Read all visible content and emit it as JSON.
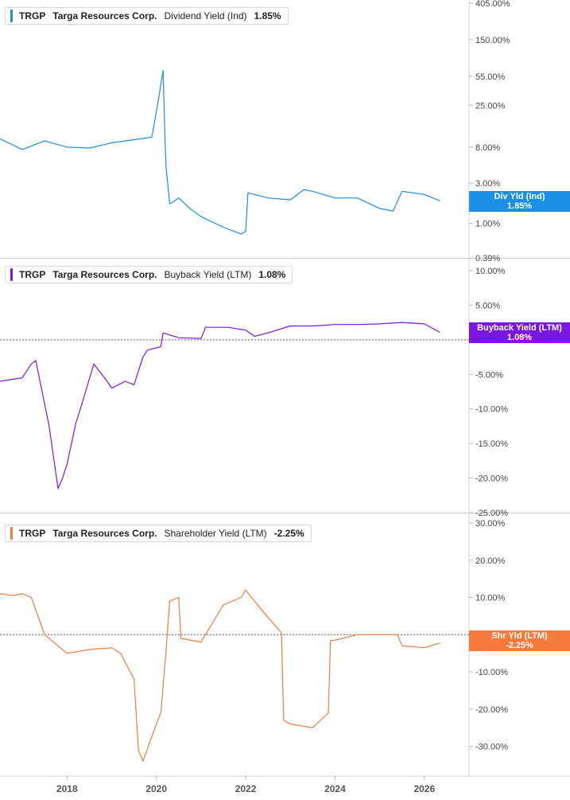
{
  "panels": [
    {
      "ticker": "TRGP",
      "company": "Targa Resources Corp.",
      "metric": "Dividend Yield (Ind)",
      "current_value": "1.85%",
      "tag_label": "Div Yld (Ind)",
      "color": "#1a8fe3"
    },
    {
      "ticker": "TRGP",
      "company": "Targa Resources Corp.",
      "metric": "Buyback Yield (LTM)",
      "current_value": "1.08%",
      "tag_label": "Buyback Yield (LTM)",
      "color": "#7b16e0"
    },
    {
      "ticker": "TRGP",
      "company": "Targa Resources Corp.",
      "metric": "Shareholder Yield (LTM)",
      "current_value": "-2.25%",
      "tag_label": "Shr Yld (LTM)",
      "color": "#f57a3c"
    }
  ],
  "chart_data": [
    {
      "type": "line",
      "scale": "log",
      "series": [
        {
          "name": "Dividend Yield (Ind)",
          "x": [
            "2016.5",
            "2017.0",
            "2017.5",
            "2018.0",
            "2018.5",
            "2019.0",
            "2019.5",
            "2019.9",
            "2020.05",
            "2020.15",
            "2020.2",
            "2020.22",
            "2020.3",
            "2020.5",
            "2020.75",
            "2021.0",
            "2021.5",
            "2021.9",
            "2022.0",
            "2022.05",
            "2022.5",
            "2023.0",
            "2023.3",
            "2023.5",
            "2024.0",
            "2024.5",
            "2025.0",
            "2025.3",
            "2025.5",
            "2026.0",
            "2026.35"
          ],
          "values": [
            10.0,
            7.5,
            9.5,
            8.0,
            7.8,
            9.0,
            9.8,
            10.5,
            30.0,
            65.0,
            8.0,
            4.5,
            1.7,
            2.0,
            1.5,
            1.2,
            0.9,
            0.75,
            0.8,
            2.3,
            2.0,
            1.9,
            2.5,
            2.4,
            2.0,
            2.0,
            1.5,
            1.4,
            2.4,
            2.2,
            1.85
          ],
          "color": "#1a8fe3"
        }
      ],
      "y_ticks": [
        "405.00%",
        "150.00%",
        "55.00%",
        "25.00%",
        "8.00%",
        "3.00%",
        "1.00%",
        "0.39%"
      ],
      "y_tick_values": [
        405,
        150,
        55,
        25,
        8,
        3,
        1,
        0.39
      ],
      "ylim": [
        0.39,
        405
      ]
    },
    {
      "type": "line",
      "scale": "linear",
      "series": [
        {
          "name": "Buyback Yield (LTM)",
          "x": [
            "2016.5",
            "2017.0",
            "2017.2",
            "2017.3",
            "2017.6",
            "2017.8",
            "2017.9",
            "2018.0",
            "2018.2",
            "2018.3",
            "2018.6",
            "2018.9",
            "2019.0",
            "2019.3",
            "2019.5",
            "2019.7",
            "2019.8",
            "2020.1",
            "2020.15",
            "2020.5",
            "2021.0",
            "2021.1",
            "2021.6",
            "2022.0",
            "2022.2",
            "2022.5",
            "2023.0",
            "2023.5",
            "2024.0",
            "2024.5",
            "2025.0",
            "2025.5",
            "2026.0",
            "2026.35"
          ],
          "values": [
            -6.0,
            -5.5,
            -3.5,
            -3.0,
            -12.5,
            -21.5,
            -20.0,
            -18.0,
            -12.0,
            -10.0,
            -3.5,
            -6.0,
            -7.0,
            -6.0,
            -6.5,
            -2.5,
            -1.5,
            -1.0,
            1.0,
            0.3,
            0.2,
            1.8,
            1.8,
            1.4,
            0.5,
            1.0,
            2.0,
            2.0,
            2.2,
            2.2,
            2.3,
            2.5,
            2.3,
            1.08
          ],
          "color": "#7b16e0"
        }
      ],
      "y_ticks": [
        "10.00%",
        "5.00%",
        "-5.00%",
        "-10.00%",
        "-15.00%",
        "-20.00%",
        "-25.00%"
      ],
      "y_tick_values": [
        10,
        5,
        -5,
        -10,
        -15,
        -20,
        -25
      ],
      "ylim": [
        -25,
        10
      ]
    },
    {
      "type": "line",
      "scale": "linear",
      "series": [
        {
          "name": "Shareholder Yield (LTM)",
          "x": [
            "2016.5",
            "2016.8",
            "2017.0",
            "2017.2",
            "2017.5",
            "2017.8",
            "2018.0",
            "2018.5",
            "2019.0",
            "2019.2",
            "2019.5",
            "2019.6",
            "2019.7",
            "2020.0",
            "2020.1",
            "2020.2",
            "2020.3",
            "2020.5",
            "2020.55",
            "2021.0",
            "2021.5",
            "2021.9",
            "2022.0",
            "2022.4",
            "2022.8",
            "2022.85",
            "2023.0",
            "2023.5",
            "2023.85",
            "2023.9",
            "2024.0",
            "2024.5",
            "2025.0",
            "2025.4",
            "2025.5",
            "2026.0",
            "2026.35"
          ],
          "values": [
            11.0,
            10.5,
            11.0,
            10.0,
            0.0,
            -3.0,
            -5.0,
            -4.0,
            -3.5,
            -5.0,
            -12.0,
            -31.0,
            -34.0,
            -24.0,
            -21.0,
            -7.0,
            9.0,
            10.0,
            -1.0,
            -2.0,
            8.0,
            10.0,
            12.0,
            6.0,
            0.5,
            -23.0,
            -24.0,
            -25.0,
            -21.0,
            -1.5,
            -1.5,
            0.0,
            0.0,
            0.0,
            -3.0,
            -3.5,
            -2.25
          ],
          "color": "#f57a3c"
        }
      ],
      "y_ticks": [
        "30.00%",
        "20.00%",
        "10.00%",
        "-10.00%",
        "-20.00%",
        "-30.00%"
      ],
      "y_tick_values": [
        30,
        20,
        10,
        -10,
        -20,
        -30
      ],
      "ylim": [
        -38,
        30
      ]
    }
  ],
  "x_axis": {
    "tick_labels": [
      "2018",
      "2020",
      "2022",
      "2024",
      "2026"
    ],
    "tick_values": [
      2018,
      2020,
      2022,
      2024,
      2026
    ],
    "range": [
      2016.5,
      2027.0
    ]
  }
}
